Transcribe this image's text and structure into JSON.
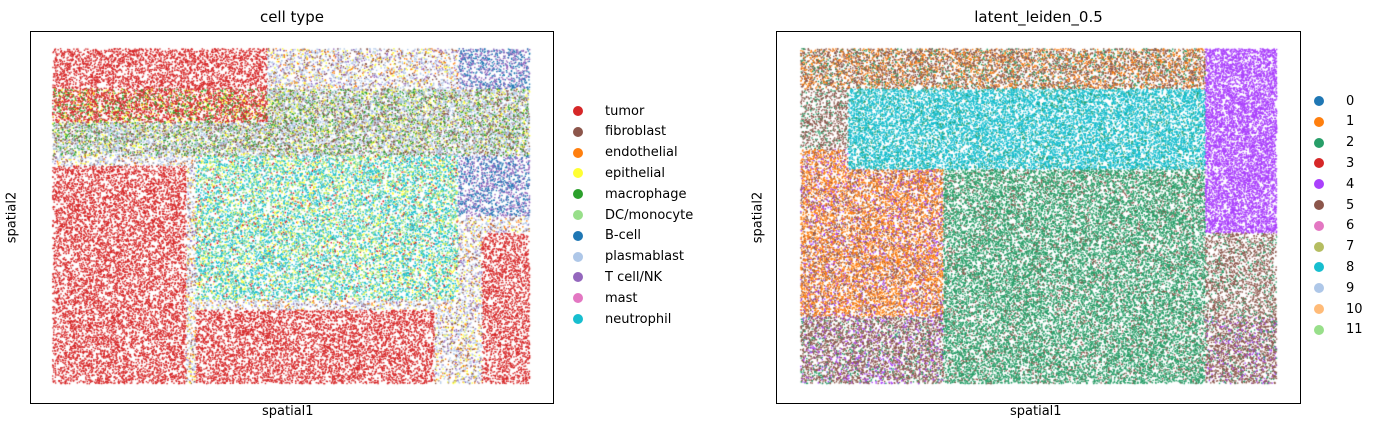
{
  "chart_data": [
    {
      "type": "scatter",
      "title": "cell type",
      "xlabel": "spatial1",
      "ylabel": "spatial2",
      "grid": false,
      "legend_position": "right",
      "categories": [
        {
          "name": "tumor",
          "color": "#d62728"
        },
        {
          "name": "fibroblast",
          "color": "#8c564b"
        },
        {
          "name": "endothelial",
          "color": "#ff7f0e"
        },
        {
          "name": "epithelial",
          "color": "#ffff33"
        },
        {
          "name": "macrophage",
          "color": "#2ca02c"
        },
        {
          "name": "DC/monocyte",
          "color": "#98df8a"
        },
        {
          "name": "B-cell",
          "color": "#1f77b4"
        },
        {
          "name": "plasmablast",
          "color": "#aec7e8"
        },
        {
          "name": "T cell/NK",
          "color": "#9467bd"
        },
        {
          "name": "mast",
          "color": "#e377c2"
        },
        {
          "name": "neutrophil",
          "color": "#17becf"
        }
      ]
    },
    {
      "type": "scatter",
      "title": "latent_leiden_0.5",
      "xlabel": "spatial1",
      "ylabel": "spatial2",
      "grid": false,
      "legend_position": "right",
      "categories": [
        {
          "name": "0",
          "color": "#1f77b4"
        },
        {
          "name": "1",
          "color": "#ff7f0e"
        },
        {
          "name": "2",
          "color": "#279e68"
        },
        {
          "name": "3",
          "color": "#d62728"
        },
        {
          "name": "4",
          "color": "#aa40fc"
        },
        {
          "name": "5",
          "color": "#8c564b"
        },
        {
          "name": "6",
          "color": "#e377c2"
        },
        {
          "name": "7",
          "color": "#b5bd61"
        },
        {
          "name": "8",
          "color": "#17becf"
        },
        {
          "name": "9",
          "color": "#aec7e8"
        },
        {
          "name": "10",
          "color": "#ffbb78"
        },
        {
          "name": "11",
          "color": "#98df8a"
        }
      ]
    }
  ]
}
